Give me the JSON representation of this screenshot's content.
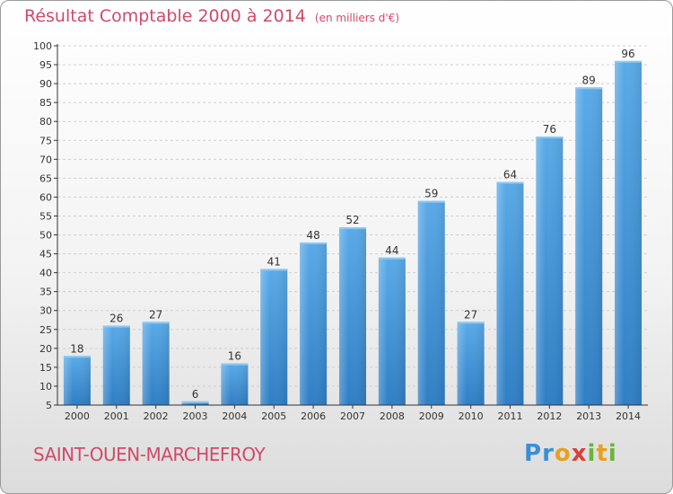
{
  "header": {
    "title": "Résultat Comptable 2000 à 2014",
    "unit_note": "(en milliers d'€)"
  },
  "footer": {
    "commune": "SAINT-OUEN-MARCHEFROY",
    "logo_text": "Proxiti",
    "logo_letters": [
      {
        "ch": "P",
        "color": "#3a8fd6"
      },
      {
        "ch": "r",
        "color": "#3a8fd6"
      },
      {
        "ch": "o",
        "color": "#e8a020"
      },
      {
        "ch": "x",
        "color": "#d9403a"
      },
      {
        "ch": "i",
        "color": "#6cb33f"
      },
      {
        "ch": "t",
        "color": "#e8a020"
      },
      {
        "ch": "i",
        "color": "#6cb33f"
      }
    ]
  },
  "colors": {
    "accent_text": "#d04a6a",
    "bar_light": "#5aaae8",
    "bar_dark": "#2f7ec4",
    "axis": "#333333"
  },
  "chart_data": {
    "type": "bar",
    "categories": [
      "2000",
      "2001",
      "2002",
      "2003",
      "2004",
      "2005",
      "2006",
      "2007",
      "2008",
      "2009",
      "2010",
      "2011",
      "2012",
      "2013",
      "2014"
    ],
    "values": [
      18,
      26,
      27,
      6,
      16,
      41,
      48,
      52,
      44,
      59,
      27,
      64,
      76,
      89,
      96
    ],
    "ylim": [
      5,
      100
    ],
    "yticks": [
      5,
      10,
      15,
      20,
      25,
      30,
      35,
      40,
      45,
      50,
      55,
      60,
      65,
      70,
      75,
      80,
      85,
      90,
      95,
      100
    ],
    "grid": true,
    "data_labels": true
  }
}
